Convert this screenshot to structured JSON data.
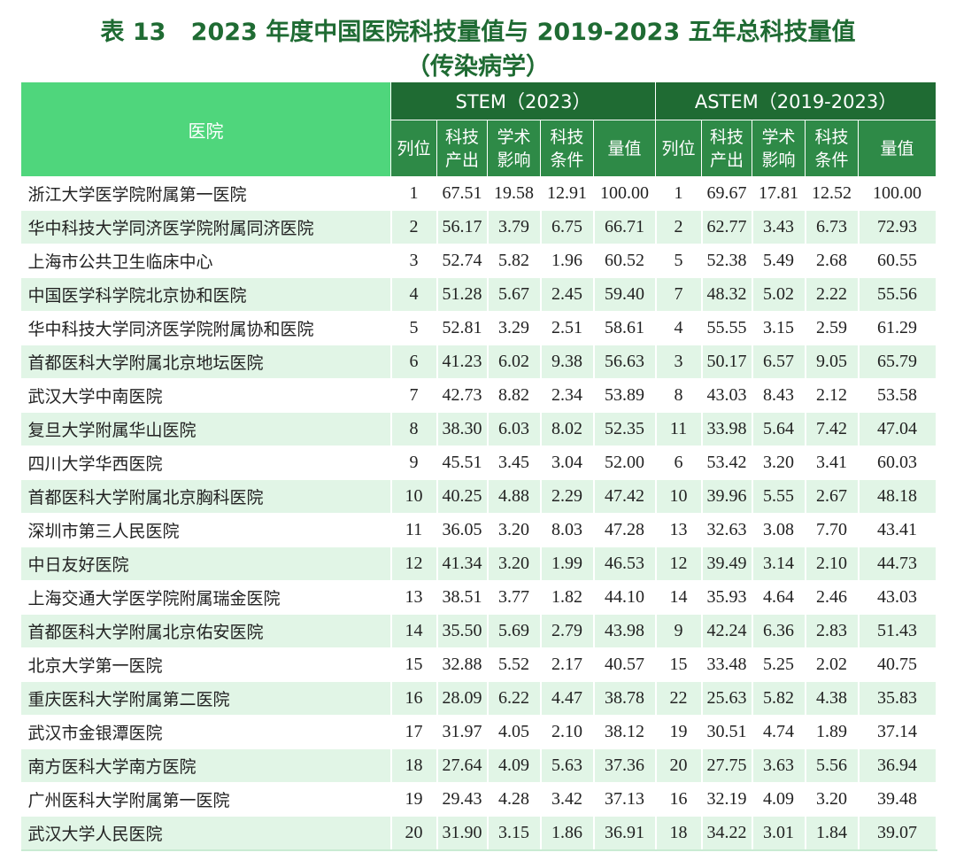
{
  "title_line1": "表 13   2023 年度中国医院科技量值与 2019-2023 五年总科技量值",
  "title_line2": "（传染病学）",
  "header": {
    "hospital": "医院",
    "stem": "STEM（2023）",
    "astem": "ASTEM（2019-2023）",
    "cols": [
      "列位",
      "科技\n产出",
      "学术\n影响",
      "科技\n条件",
      "量值"
    ]
  },
  "rows": [
    [
      "浙江大学医学院附属第一医院",
      "1",
      "67.51",
      "19.58",
      "12.91",
      "100.00",
      "1",
      "69.67",
      "17.81",
      "12.52",
      "100.00"
    ],
    [
      "华中科技大学同济医学院附属同济医院",
      "2",
      "56.17",
      "3.79",
      "6.75",
      "66.71",
      "2",
      "62.77",
      "3.43",
      "6.73",
      "72.93"
    ],
    [
      "上海市公共卫生临床中心",
      "3",
      "52.74",
      "5.82",
      "1.96",
      "60.52",
      "5",
      "52.38",
      "5.49",
      "2.68",
      "60.55"
    ],
    [
      "中国医学科学院北京协和医院",
      "4",
      "51.28",
      "5.67",
      "2.45",
      "59.40",
      "7",
      "48.32",
      "5.02",
      "2.22",
      "55.56"
    ],
    [
      "华中科技大学同济医学院附属协和医院",
      "5",
      "52.81",
      "3.29",
      "2.51",
      "58.61",
      "4",
      "55.55",
      "3.15",
      "2.59",
      "61.29"
    ],
    [
      "首都医科大学附属北京地坛医院",
      "6",
      "41.23",
      "6.02",
      "9.38",
      "56.63",
      "3",
      "50.17",
      "6.57",
      "9.05",
      "65.79"
    ],
    [
      "武汉大学中南医院",
      "7",
      "42.73",
      "8.82",
      "2.34",
      "53.89",
      "8",
      "43.03",
      "8.43",
      "2.12",
      "53.58"
    ],
    [
      "复旦大学附属华山医院",
      "8",
      "38.30",
      "6.03",
      "8.02",
      "52.35",
      "11",
      "33.98",
      "5.64",
      "7.42",
      "47.04"
    ],
    [
      "四川大学华西医院",
      "9",
      "45.51",
      "3.45",
      "3.04",
      "52.00",
      "6",
      "53.42",
      "3.20",
      "3.41",
      "60.03"
    ],
    [
      "首都医科大学附属北京胸科医院",
      "10",
      "40.25",
      "4.88",
      "2.29",
      "47.42",
      "10",
      "39.96",
      "5.55",
      "2.67",
      "48.18"
    ],
    [
      "深圳市第三人民医院",
      "11",
      "36.05",
      "3.20",
      "8.03",
      "47.28",
      "13",
      "32.63",
      "3.08",
      "7.70",
      "43.41"
    ],
    [
      "中日友好医院",
      "12",
      "41.34",
      "3.20",
      "1.99",
      "46.53",
      "12",
      "39.49",
      "3.14",
      "2.10",
      "44.73"
    ],
    [
      "上海交通大学医学院附属瑞金医院",
      "13",
      "38.51",
      "3.77",
      "1.82",
      "44.10",
      "14",
      "35.93",
      "4.64",
      "2.46",
      "43.03"
    ],
    [
      "首都医科大学附属北京佑安医院",
      "14",
      "35.50",
      "5.69",
      "2.79",
      "43.98",
      "9",
      "42.24",
      "6.36",
      "2.83",
      "51.43"
    ],
    [
      "北京大学第一医院",
      "15",
      "32.88",
      "5.52",
      "2.17",
      "40.57",
      "15",
      "33.48",
      "5.25",
      "2.02",
      "40.75"
    ],
    [
      "重庆医科大学附属第二医院",
      "16",
      "28.09",
      "6.22",
      "4.47",
      "38.78",
      "22",
      "25.63",
      "5.82",
      "4.38",
      "35.83"
    ],
    [
      "武汉市金银潭医院",
      "17",
      "31.97",
      "4.05",
      "2.10",
      "38.12",
      "19",
      "30.51",
      "4.74",
      "1.89",
      "37.14"
    ],
    [
      "南方医科大学南方医院",
      "18",
      "27.64",
      "4.09",
      "5.63",
      "37.36",
      "20",
      "27.75",
      "3.63",
      "5.56",
      "36.94"
    ],
    [
      "广州医科大学附属第一医院",
      "19",
      "29.43",
      "4.28",
      "3.42",
      "37.13",
      "16",
      "32.19",
      "4.09",
      "3.20",
      "39.48"
    ],
    [
      "武汉大学人民医院",
      "20",
      "31.90",
      "3.15",
      "1.86",
      "36.91",
      "18",
      "34.22",
      "3.01",
      "1.84",
      "39.07"
    ]
  ]
}
